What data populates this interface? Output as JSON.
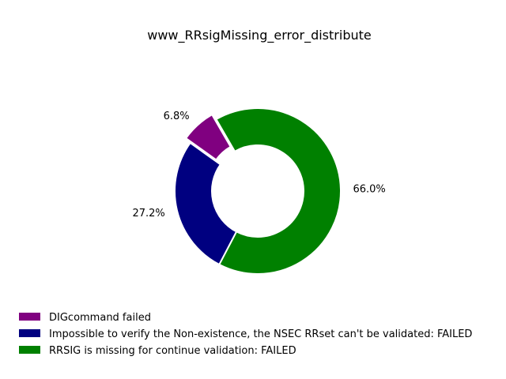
{
  "chart_data": {
    "type": "pie",
    "variant": "donut",
    "title": "www_RRsigMissing_error_distribute",
    "slices": [
      {
        "label": "DIGcommand failed",
        "value": 6.8,
        "pct_text": "6.8%",
        "color": "#800080",
        "exploded": true
      },
      {
        "label": "Impossible to verify the Non-existence, the NSEC RRset can't be validated: FAILED",
        "value": 27.2,
        "pct_text": "27.2%",
        "color": "#000080",
        "exploded": false
      },
      {
        "label": "RRSIG is missing for continue validation: FAILED",
        "value": 66.0,
        "pct_text": "66.0%",
        "color": "#008000",
        "exploded": false
      }
    ],
    "legend_position": "bottom-left",
    "grid": false
  }
}
